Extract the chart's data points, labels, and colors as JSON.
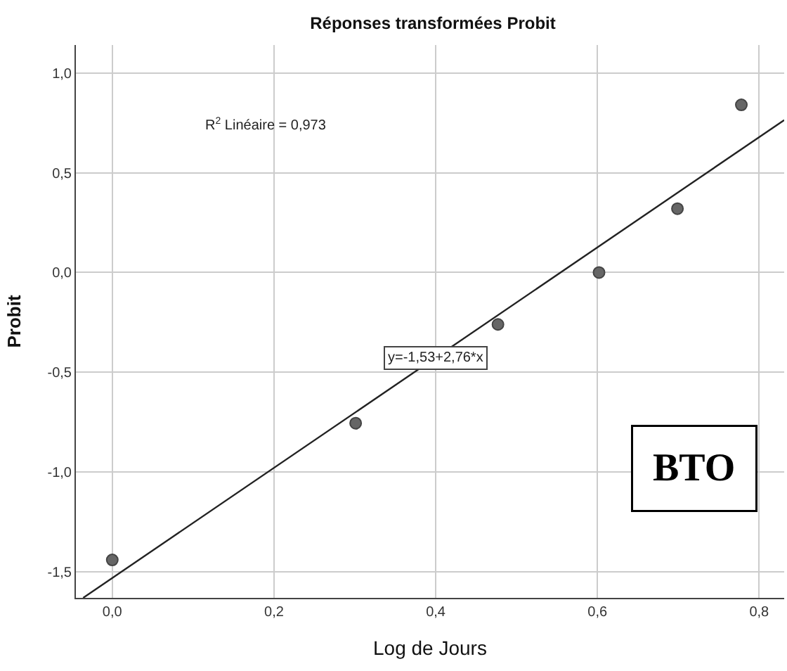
{
  "chart_data": {
    "type": "scatter",
    "title": "Réponses transformées Probit",
    "xlabel": "Log de Jours",
    "ylabel": "Probit",
    "x": [
      0.0,
      0.301,
      0.477,
      0.602,
      0.699,
      0.778
    ],
    "series": [
      {
        "color": "#666666",
        "values": [
          -1.44,
          -0.755,
          -0.26,
          0.0,
          0.32,
          0.84
        ],
        "marker": "circle"
      },
      {
        "type": "line",
        "color": "#222222",
        "x": [
          -0.036,
          0.831
        ],
        "values": [
          -1.63,
          0.764
        ],
        "marker": "none",
        "line_style": "solid"
      }
    ],
    "xlim": [
      -0.045,
      0.831
    ],
    "ylim": [
      -1.63,
      1.14
    ],
    "xticks": [
      {
        "value": 0.0,
        "label": "0,0"
      },
      {
        "value": 0.2,
        "label": "0,2"
      },
      {
        "value": 0.4,
        "label": "0,4"
      },
      {
        "value": 0.6,
        "label": "0,6"
      },
      {
        "value": 0.8,
        "label": "0,8"
      }
    ],
    "yticks": [
      {
        "value": -1.5,
        "label": "-1,5"
      },
      {
        "value": -1.0,
        "label": "-1,0"
      },
      {
        "value": -0.5,
        "label": "-0,5"
      },
      {
        "value": 0.0,
        "label": "0,0"
      },
      {
        "value": 0.5,
        "label": "0,5"
      },
      {
        "value": 1.0,
        "label": "1,0"
      }
    ],
    "grid": true,
    "annotations": [
      "R$^{2}$ Linéaire = 0,973",
      {
        "text": "y=-1,53+2,76*x",
        "x": 0.4,
        "y": -0.426
      },
      "BTO"
    ]
  }
}
